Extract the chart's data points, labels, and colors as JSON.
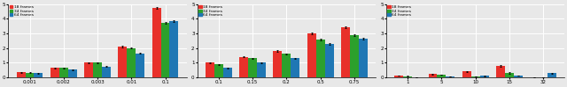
{
  "subplots": [
    {
      "xlabel_vals": [
        "0.001",
        "0.002",
        "0.003",
        "0.01",
        "0.1"
      ],
      "red": [
        0.35,
        0.65,
        1.0,
        2.1,
        4.75
      ],
      "green": [
        0.32,
        0.65,
        1.0,
        2.0,
        3.75
      ],
      "blue": [
        0.28,
        0.52,
        0.75,
        1.65,
        3.85
      ],
      "red_err": [
        0.02,
        0.02,
        0.03,
        0.04,
        0.06
      ],
      "green_err": [
        0.02,
        0.02,
        0.03,
        0.04,
        0.06
      ],
      "blue_err": [
        0.02,
        0.02,
        0.03,
        0.04,
        0.06
      ],
      "ylim": [
        0,
        5
      ],
      "yticks": [
        0,
        1,
        2,
        3,
        4,
        5
      ]
    },
    {
      "xlabel_vals": [
        "0.1",
        "0.15",
        "0.2",
        "0.5",
        "0.75"
      ],
      "red": [
        1.0,
        1.4,
        1.8,
        3.0,
        3.45
      ],
      "green": [
        0.9,
        1.3,
        1.6,
        2.6,
        2.9
      ],
      "blue": [
        0.65,
        1.0,
        1.3,
        2.3,
        2.65
      ],
      "red_err": [
        0.03,
        0.03,
        0.04,
        0.05,
        0.06
      ],
      "green_err": [
        0.03,
        0.03,
        0.04,
        0.05,
        0.06
      ],
      "blue_err": [
        0.03,
        0.03,
        0.04,
        0.05,
        0.06
      ],
      "ylim": [
        0,
        5
      ],
      "yticks": [
        0,
        1,
        2,
        3,
        4,
        5
      ]
    },
    {
      "xlabel_vals": [
        "1",
        "5",
        "10",
        "15",
        "32"
      ],
      "red": [
        0.13,
        0.22,
        0.4,
        0.8,
        0.0
      ],
      "green": [
        0.08,
        0.18,
        0.07,
        0.3,
        0.0
      ],
      "blue": [
        0.0,
        0.05,
        0.1,
        0.12,
        0.28
      ],
      "red_err": [
        0.02,
        0.02,
        0.03,
        0.07,
        0.0
      ],
      "green_err": [
        0.02,
        0.02,
        0.02,
        0.04,
        0.0
      ],
      "blue_err": [
        0.01,
        0.01,
        0.02,
        0.02,
        0.03
      ],
      "ylim": [
        0,
        5
      ],
      "yticks": [
        0,
        1,
        2,
        3,
        4,
        5
      ]
    }
  ],
  "colors": [
    "#e8302a",
    "#2ca02c",
    "#1f77b4"
  ],
  "legend_labels": [
    "18 frames",
    "34 frames",
    "64 frames"
  ],
  "background_color": "#e8e8e8",
  "grid_color": "white"
}
